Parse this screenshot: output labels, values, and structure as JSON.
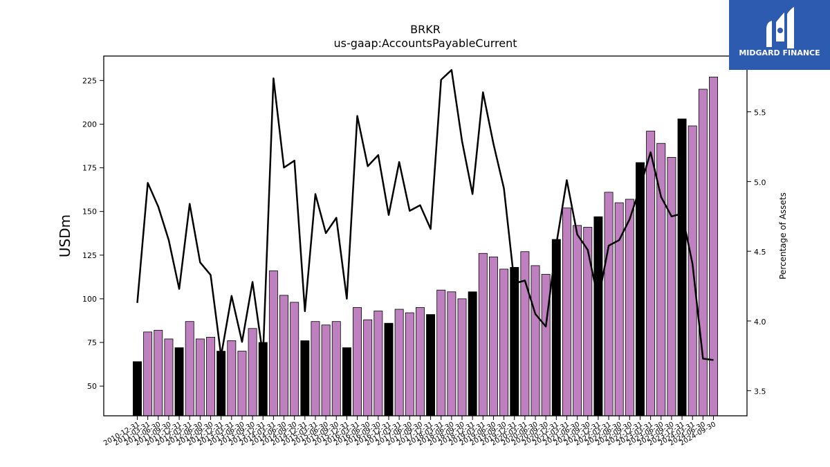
{
  "chart_data": {
    "type": "bar",
    "title": "BRKR",
    "subtitle": "us-gaap:AccountsPayableCurrent",
    "ylabel": "USDm",
    "y2label": "Percentage of Assets",
    "ylim": [
      33,
      239
    ],
    "y2lim": [
      3.32,
      5.9
    ],
    "yticks": [
      50,
      75,
      100,
      125,
      150,
      175,
      200,
      225
    ],
    "y2ticks": [
      3.5,
      4.0,
      4.5,
      5.0,
      5.5
    ],
    "grid": false,
    "legend": "none",
    "categories": [
      "2010-12-31",
      "2011-03-31",
      "2011-06-30",
      "2011-09-30",
      "2011-12-31",
      "2012-03-31",
      "2012-06-30",
      "2012-09-30",
      "2012-12-31",
      "2013-03-31",
      "2013-06-30",
      "2013-09-30",
      "2013-12-31",
      "2014-03-31",
      "2014-06-30",
      "2014-09-30",
      "2014-12-31",
      "2015-03-31",
      "2015-06-30",
      "2015-09-30",
      "2015-12-31",
      "2016-03-31",
      "2016-06-30",
      "2016-09-30",
      "2016-12-31",
      "2017-03-31",
      "2017-06-30",
      "2017-09-30",
      "2017-12-31",
      "2018-03-31",
      "2018-06-30",
      "2018-09-30",
      "2018-12-31",
      "2019-03-31",
      "2019-06-30",
      "2019-09-30",
      "2019-12-31",
      "2020-03-31",
      "2020-06-30",
      "2020-09-30",
      "2020-12-31",
      "2021-03-31",
      "2021-06-30",
      "2021-09-30",
      "2021-12-31",
      "2022-03-31",
      "2022-06-30",
      "2022-09-30",
      "2022-12-31",
      "2023-03-31",
      "2023-06-30",
      "2023-09-30",
      "2023-12-31",
      "2024-03-31",
      "2024-06-30",
      "2024-09-30"
    ],
    "series": [
      {
        "type": "bar",
        "values": [
          64,
          81,
          82,
          77,
          72,
          87,
          77,
          78,
          70,
          76,
          70,
          83,
          75,
          116,
          102,
          98,
          76,
          87,
          85,
          87,
          72,
          95,
          88,
          93,
          86,
          94,
          92,
          95,
          91,
          105,
          104,
          100,
          104,
          126,
          124,
          117,
          118,
          127,
          119,
          114,
          134,
          152,
          142,
          141,
          147,
          161,
          155,
          157,
          178,
          196,
          189,
          181,
          203,
          199,
          220,
          227
        ],
        "colors": [
          "#000000",
          "#bf80bf",
          "#bf80bf",
          "#bf80bf",
          "#000000",
          "#bf80bf",
          "#bf80bf",
          "#bf80bf",
          "#000000",
          "#bf80bf",
          "#bf80bf",
          "#bf80bf",
          "#000000",
          "#bf80bf",
          "#bf80bf",
          "#bf80bf",
          "#000000",
          "#bf80bf",
          "#bf80bf",
          "#bf80bf",
          "#000000",
          "#bf80bf",
          "#bf80bf",
          "#bf80bf",
          "#000000",
          "#bf80bf",
          "#bf80bf",
          "#bf80bf",
          "#000000",
          "#bf80bf",
          "#bf80bf",
          "#bf80bf",
          "#000000",
          "#bf80bf",
          "#bf80bf",
          "#bf80bf",
          "#000000",
          "#bf80bf",
          "#bf80bf",
          "#bf80bf",
          "#000000",
          "#bf80bf",
          "#bf80bf",
          "#bf80bf",
          "#000000",
          "#bf80bf",
          "#bf80bf",
          "#bf80bf",
          "#000000",
          "#bf80bf",
          "#bf80bf",
          "#bf80bf",
          "#000000",
          "#bf80bf",
          "#bf80bf",
          "#bf80bf"
        ]
      },
      {
        "type": "line",
        "axis": "right",
        "color": "#000000",
        "values": [
          4.13,
          4.99,
          4.82,
          4.58,
          4.23,
          4.84,
          4.42,
          4.33,
          3.75,
          4.18,
          3.85,
          4.28,
          3.75,
          5.74,
          5.1,
          5.15,
          4.07,
          4.91,
          4.63,
          4.74,
          4.16,
          5.47,
          5.11,
          5.19,
          4.76,
          5.14,
          4.79,
          4.83,
          4.66,
          5.73,
          5.8,
          5.29,
          4.91,
          5.64,
          5.27,
          4.95,
          4.27,
          4.29,
          4.05,
          3.96,
          4.55,
          5.01,
          4.62,
          4.51,
          4.15,
          4.54,
          4.58,
          4.73,
          4.96,
          5.21,
          4.89,
          4.75,
          4.77,
          4.41,
          3.73,
          3.72
        ]
      }
    ]
  },
  "logo": {
    "text": "MIDGARD FINANCE",
    "bg_color": "#2d5bb0",
    "fg_color": "#ffffff"
  }
}
